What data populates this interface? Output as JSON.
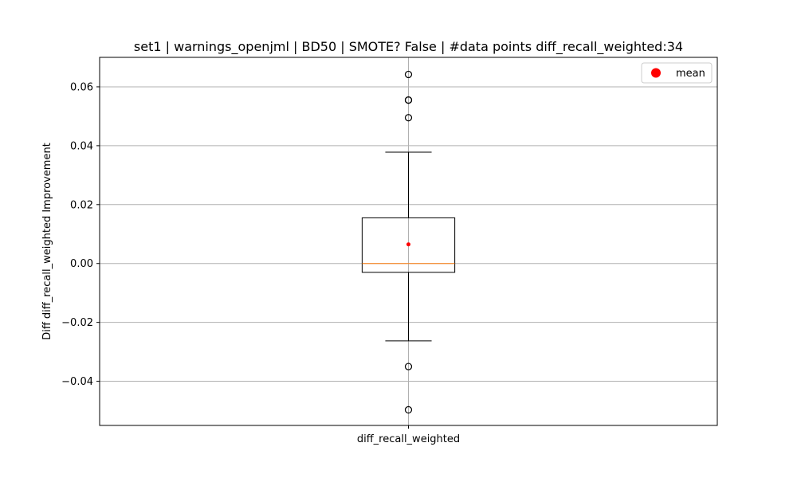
{
  "chart_data": {
    "type": "box",
    "title": "set1 | warnings_openjml | BD50 | SMOTE? False | #data points diff_recall_weighted:34",
    "xlabel": "",
    "ylabel": "Diff diff_recall_weighted Improvement",
    "categories": [
      "diff_recall_weighted"
    ],
    "ylim": [
      -0.055,
      0.07
    ],
    "yticks": [
      -0.04,
      -0.02,
      0.0,
      0.02,
      0.04,
      0.06
    ],
    "ytick_labels": [
      "−0.04",
      "−0.02",
      "0.00",
      "0.02",
      "0.04",
      "0.06"
    ],
    "grid": true,
    "legend": {
      "position": "top-right",
      "entries": [
        {
          "label": "mean",
          "color": "#ff0000",
          "marker": "circle"
        }
      ]
    },
    "boxes": [
      {
        "category": "diff_recall_weighted",
        "whisker_low": -0.0263,
        "q1": -0.003,
        "median": 0.0,
        "q3": 0.0155,
        "whisker_high": 0.0378,
        "mean": 0.0065,
        "outliers": [
          0.0642,
          0.0555,
          0.0555,
          0.0495,
          -0.035,
          -0.0497
        ]
      }
    ],
    "colors": {
      "box": "#000000",
      "median": "#ff7f0e",
      "mean": "#ff0000",
      "grid": "#b0b0b0"
    }
  }
}
